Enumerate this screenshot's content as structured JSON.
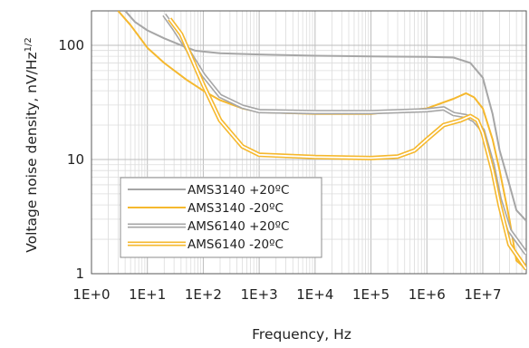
{
  "chart_data": {
    "type": "line",
    "title": "",
    "xlabel": "Frequency, Hz",
    "ylabel_main": "Voltage noise density, nV/Hz",
    "ylabel_sup": "1/2",
    "x_scale": "log",
    "y_scale": "log",
    "xlim": [
      1,
      60000000
    ],
    "ylim": [
      1,
      200
    ],
    "x_ticks": [
      {
        "value": 1,
        "label": "1E+0"
      },
      {
        "value": 10,
        "label": "1E+1"
      },
      {
        "value": 100,
        "label": "1E+2"
      },
      {
        "value": 1000,
        "label": "1E+3"
      },
      {
        "value": 10000,
        "label": "1E+4"
      },
      {
        "value": 100000,
        "label": "1E+5"
      },
      {
        "value": 1000000,
        "label": "1E+6"
      },
      {
        "value": 10000000,
        "label": "1E+7"
      }
    ],
    "y_ticks": [
      {
        "value": 1,
        "label": "1"
      },
      {
        "value": 10,
        "label": "10"
      },
      {
        "value": 100,
        "label": "100"
      }
    ],
    "grid": true,
    "legend_position": "bottom-left",
    "series": [
      {
        "name": "AMS3140 +20ºC",
        "color": "#a6a6a6",
        "double": false,
        "points": [
          [
            4,
            200
          ],
          [
            6,
            160
          ],
          [
            10,
            135
          ],
          [
            20,
            115
          ],
          [
            40,
            100
          ],
          [
            70,
            90
          ],
          [
            100,
            88
          ],
          [
            200,
            85
          ],
          [
            1000,
            83
          ],
          [
            10000,
            81
          ],
          [
            100000,
            80
          ],
          [
            1000000,
            79
          ],
          [
            3000000,
            78
          ],
          [
            6000000,
            70
          ],
          [
            10000000,
            52
          ],
          [
            15000000,
            25
          ],
          [
            20000000,
            12
          ],
          [
            30000000,
            6
          ],
          [
            40000000,
            3.6
          ],
          [
            60000000,
            2.9
          ]
        ]
      },
      {
        "name": "AMS3140 -20ºC",
        "color": "#f5b82e",
        "double": false,
        "points": [
          [
            3,
            200
          ],
          [
            5,
            150
          ],
          [
            10,
            95
          ],
          [
            20,
            70
          ],
          [
            50,
            50
          ],
          [
            100,
            40
          ],
          [
            200,
            33
          ],
          [
            500,
            28
          ],
          [
            1000,
            26
          ],
          [
            10000,
            25
          ],
          [
            100000,
            25
          ],
          [
            1000000,
            28
          ],
          [
            3000000,
            34
          ],
          [
            5000000,
            38
          ],
          [
            7000000,
            35
          ],
          [
            10000000,
            28
          ],
          [
            15000000,
            15
          ],
          [
            20000000,
            8
          ],
          [
            30000000,
            3
          ],
          [
            40000000,
            1.3
          ],
          [
            60000000,
            1.1
          ]
        ]
      },
      {
        "name": "AMS6140 +20ºC",
        "color": "#a6a6a6",
        "double": true,
        "points": [
          [
            20,
            185
          ],
          [
            30,
            140
          ],
          [
            50,
            95
          ],
          [
            100,
            55
          ],
          [
            200,
            36
          ],
          [
            500,
            29
          ],
          [
            1000,
            26.5
          ],
          [
            10000,
            26
          ],
          [
            100000,
            26
          ],
          [
            1000000,
            27
          ],
          [
            2000000,
            28
          ],
          [
            3000000,
            25
          ],
          [
            5000000,
            24
          ],
          [
            7000000,
            22
          ],
          [
            10000000,
            18
          ],
          [
            15000000,
            9
          ],
          [
            20000000,
            4.5
          ],
          [
            30000000,
            2.4
          ],
          [
            60000000,
            1.5
          ]
        ]
      },
      {
        "name": "AMS6140 -20ºC",
        "color": "#f5b82e",
        "double": true,
        "points": [
          [
            25,
            170
          ],
          [
            40,
            125
          ],
          [
            60,
            80
          ],
          [
            100,
            45
          ],
          [
            200,
            22
          ],
          [
            500,
            13
          ],
          [
            1000,
            11
          ],
          [
            10000,
            10.5
          ],
          [
            100000,
            10.3
          ],
          [
            300000,
            10.6
          ],
          [
            600000,
            12
          ],
          [
            1000000,
            15
          ],
          [
            2000000,
            20
          ],
          [
            4000000,
            22
          ],
          [
            6000000,
            24
          ],
          [
            8000000,
            22
          ],
          [
            10000000,
            17
          ],
          [
            15000000,
            8
          ],
          [
            20000000,
            4
          ],
          [
            30000000,
            1.8
          ],
          [
            60000000,
            1.1
          ]
        ]
      }
    ]
  }
}
